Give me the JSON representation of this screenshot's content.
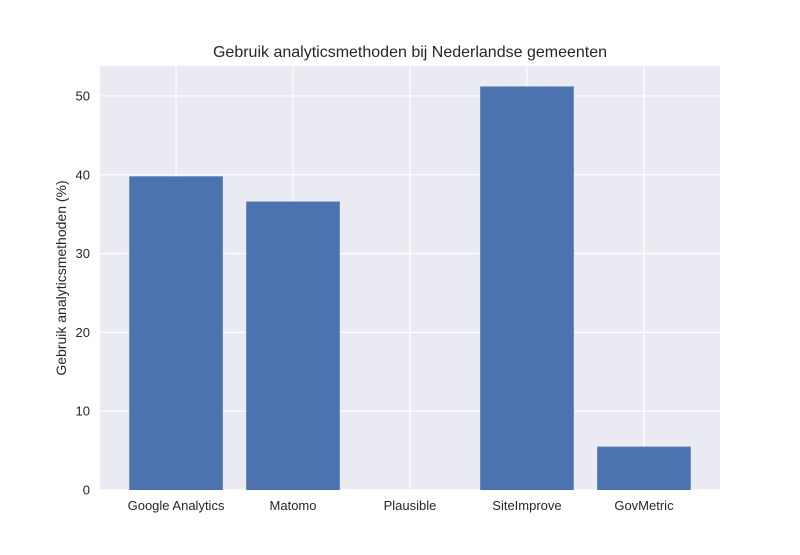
{
  "chart_data": {
    "type": "bar",
    "title": "Gebruik analyticsmethoden bij Nederlandse gemeenten",
    "xlabel": "",
    "ylabel": "Gebruik analyticsmethoden (%)",
    "categories": [
      "Google Analytics",
      "Matomo",
      "Plausible",
      "SiteImprove",
      "GovMetric"
    ],
    "values": [
      39.8,
      36.6,
      0,
      51.2,
      5.5
    ],
    "ylim": [
      0,
      53.8
    ],
    "yticks": [
      0,
      10,
      20,
      30,
      40,
      50
    ],
    "grid": true,
    "colors": {
      "bar": "#4c72b0",
      "plot_background": "#eaeaf2",
      "grid": "#ffffff",
      "text": "#262626"
    }
  }
}
